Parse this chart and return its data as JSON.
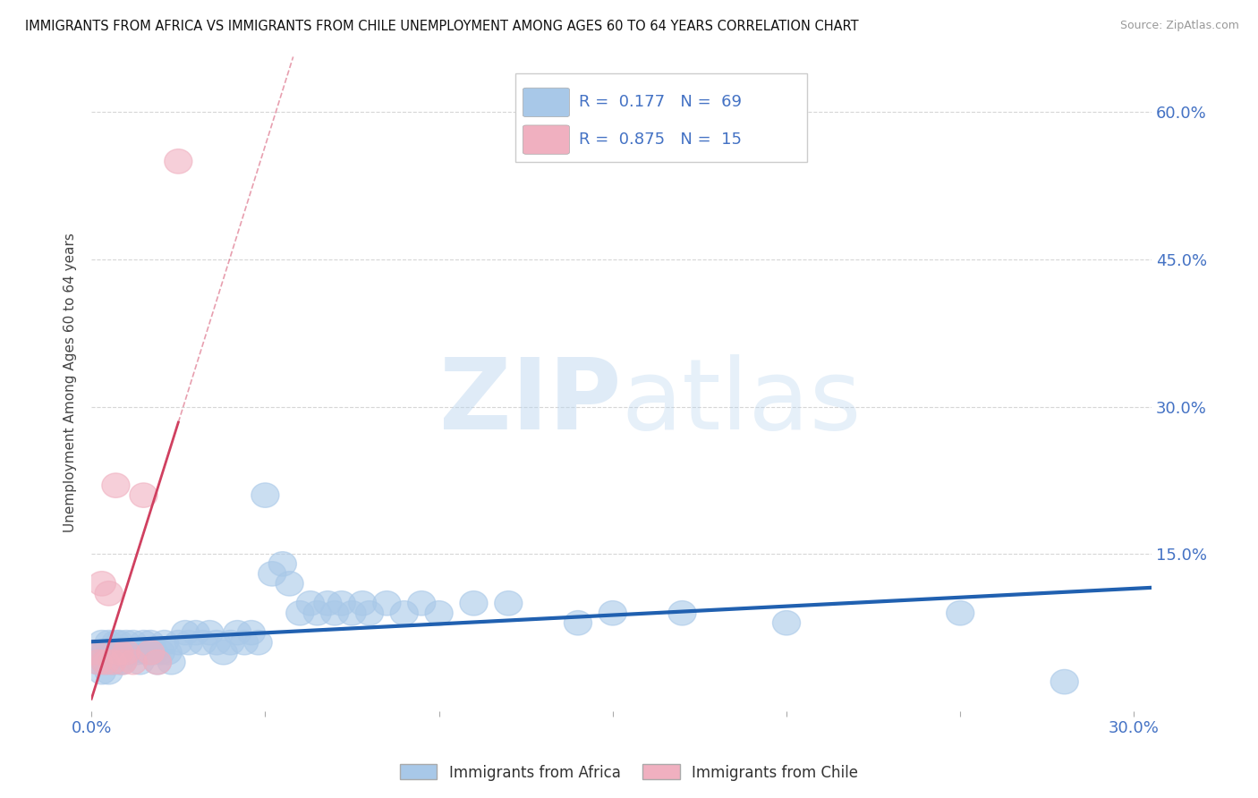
{
  "title": "IMMIGRANTS FROM AFRICA VS IMMIGRANTS FROM CHILE UNEMPLOYMENT AMONG AGES 60 TO 64 YEARS CORRELATION CHART",
  "source": "Source: ZipAtlas.com",
  "ylabel_label": "Unemployment Among Ages 60 to 64 years",
  "legend_labels": [
    "Immigrants from Africa",
    "Immigrants from Chile"
  ],
  "R_africa": 0.177,
  "N_africa": 69,
  "R_chile": 0.875,
  "N_chile": 15,
  "watermark_zip": "ZIP",
  "watermark_atlas": "atlas",
  "africa_color": "#a8c8e8",
  "africa_line_color": "#2060b0",
  "chile_color": "#f0b0c0",
  "chile_line_color": "#d04060",
  "africa_scatter_x": [
    0.001,
    0.002,
    0.003,
    0.003,
    0.004,
    0.004,
    0.005,
    0.005,
    0.006,
    0.006,
    0.007,
    0.007,
    0.008,
    0.008,
    0.009,
    0.009,
    0.01,
    0.01,
    0.011,
    0.012,
    0.013,
    0.014,
    0.015,
    0.016,
    0.017,
    0.018,
    0.019,
    0.02,
    0.021,
    0.022,
    0.023,
    0.025,
    0.027,
    0.028,
    0.03,
    0.032,
    0.034,
    0.036,
    0.038,
    0.04,
    0.042,
    0.044,
    0.046,
    0.048,
    0.05,
    0.052,
    0.055,
    0.057,
    0.06,
    0.063,
    0.065,
    0.068,
    0.07,
    0.072,
    0.075,
    0.078,
    0.08,
    0.085,
    0.09,
    0.095,
    0.1,
    0.11,
    0.12,
    0.14,
    0.15,
    0.17,
    0.2,
    0.25,
    0.28
  ],
  "africa_scatter_y": [
    0.05,
    0.04,
    0.06,
    0.03,
    0.05,
    0.04,
    0.06,
    0.03,
    0.05,
    0.04,
    0.06,
    0.05,
    0.04,
    0.06,
    0.05,
    0.04,
    0.05,
    0.06,
    0.05,
    0.06,
    0.05,
    0.04,
    0.06,
    0.05,
    0.06,
    0.05,
    0.04,
    0.05,
    0.06,
    0.05,
    0.04,
    0.06,
    0.07,
    0.06,
    0.07,
    0.06,
    0.07,
    0.06,
    0.05,
    0.06,
    0.07,
    0.06,
    0.07,
    0.06,
    0.21,
    0.13,
    0.14,
    0.12,
    0.09,
    0.1,
    0.09,
    0.1,
    0.09,
    0.1,
    0.09,
    0.1,
    0.09,
    0.1,
    0.09,
    0.1,
    0.09,
    0.1,
    0.1,
    0.08,
    0.09,
    0.09,
    0.08,
    0.09,
    0.02
  ],
  "chile_scatter_x": [
    0.001,
    0.002,
    0.003,
    0.004,
    0.005,
    0.006,
    0.007,
    0.008,
    0.009,
    0.01,
    0.012,
    0.015,
    0.017,
    0.019,
    0.025
  ],
  "chile_scatter_y": [
    0.05,
    0.04,
    0.12,
    0.04,
    0.11,
    0.04,
    0.22,
    0.05,
    0.04,
    0.05,
    0.04,
    0.21,
    0.05,
    0.04,
    0.55
  ],
  "xlim": [
    0.0,
    0.305
  ],
  "ylim": [
    -0.01,
    0.66
  ],
  "ytick_vals": [
    0.15,
    0.3,
    0.45,
    0.6
  ],
  "ytick_labels": [
    "15.0%",
    "30.0%",
    "45.0%",
    "60.0%"
  ],
  "xtick_vals": [
    0.0,
    0.05,
    0.1,
    0.15,
    0.2,
    0.25,
    0.3
  ],
  "grid_color": "#cccccc",
  "bg_color": "#ffffff",
  "title_color": "#111111",
  "source_color": "#999999",
  "tick_color": "#4472c4",
  "axis_label_color": "#444444"
}
